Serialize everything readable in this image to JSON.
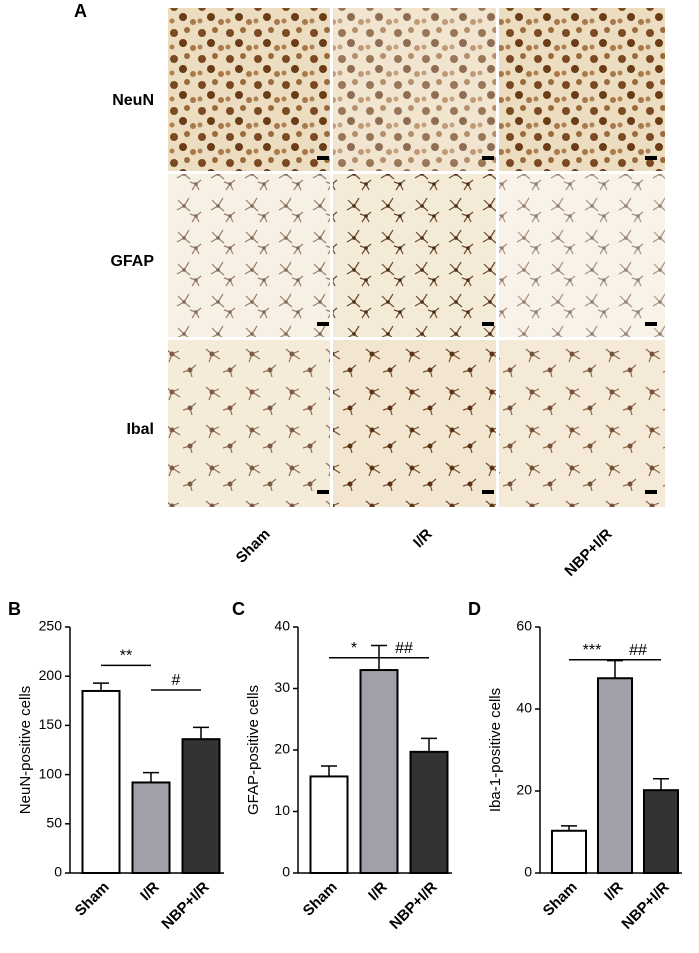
{
  "panel_a": {
    "label": "A",
    "rows": [
      "NeuN",
      "GFAP",
      "Ibal"
    ],
    "columns": [
      "Sham",
      "I/R",
      "NBP+I/R"
    ]
  },
  "chart_data": [
    {
      "type": "bar",
      "label": "B",
      "y_label": "NeuN-positive cells",
      "categories": [
        "Sham",
        "I/R",
        "NBP+I/R"
      ],
      "values": [
        185,
        92,
        136
      ],
      "errors": [
        8,
        10,
        12
      ],
      "colors": [
        "#ffffff",
        "#a0a0a8",
        "#333333"
      ],
      "ylim": [
        0,
        250
      ],
      "yticks": [
        0,
        50,
        100,
        150,
        200,
        250
      ],
      "annotations": [
        {
          "text": "**",
          "from": 0,
          "to": 1,
          "y": 211
        },
        {
          "text": "#",
          "from": 1,
          "to": 2,
          "y": 186
        }
      ]
    },
    {
      "type": "bar",
      "label": "C",
      "y_label": "GFAP-positive cells",
      "categories": [
        "Sham",
        "I/R",
        "NBP+I/R"
      ],
      "values": [
        15.7,
        33,
        19.7
      ],
      "errors": [
        1.7,
        4,
        2.2
      ],
      "colors": [
        "#ffffff",
        "#a0a0a8",
        "#333333"
      ],
      "ylim": [
        0,
        40
      ],
      "yticks": [
        0,
        10,
        20,
        30,
        40
      ],
      "annotations": [
        {
          "text": "*",
          "from": 0,
          "to": 1,
          "y": 35
        },
        {
          "text": "##",
          "from": 1,
          "to": 2,
          "y": 35
        }
      ]
    },
    {
      "type": "bar",
      "label": "D",
      "y_label": "Iba-1-positive cells",
      "categories": [
        "Sham",
        "I/R",
        "NBP+I/R"
      ],
      "values": [
        10.3,
        47.5,
        20.2
      ],
      "errors": [
        1.2,
        4.3,
        2.8
      ],
      "colors": [
        "#ffffff",
        "#a0a0a8",
        "#333333"
      ],
      "ylim": [
        0,
        60
      ],
      "yticks": [
        0,
        20,
        40,
        60
      ],
      "annotations": [
        {
          "text": "***",
          "from": 0,
          "to": 1,
          "y": 52
        },
        {
          "text": "##",
          "from": 1,
          "to": 2,
          "y": 52
        }
      ]
    }
  ]
}
